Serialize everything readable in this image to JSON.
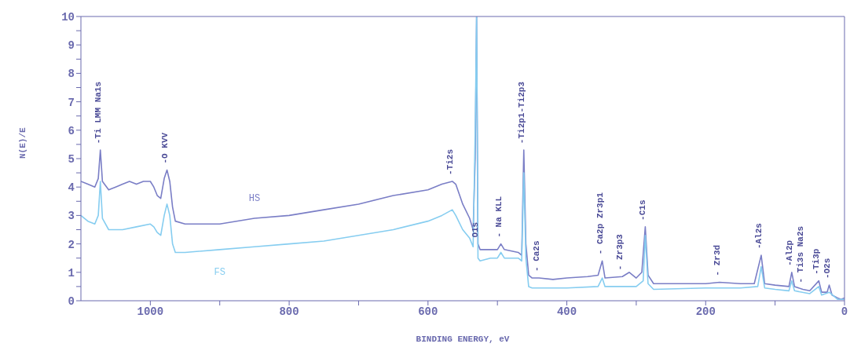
{
  "chart_data": {
    "type": "line",
    "xlabel": "BINDING ENERGY, eV",
    "ylabel": "N(E)/E",
    "xlim": [
      1100,
      0
    ],
    "xticks": [
      1000,
      {
        "value": 900,
        "label": null
      },
      800,
      {
        "value": 700,
        "label": null
      },
      600,
      {
        "value": 500,
        "label": null
      },
      400,
      {
        "value": 300,
        "label": null
      },
      200,
      {
        "value": 100,
        "label": null
      },
      0
    ],
    "ylim": [
      0,
      10
    ],
    "yticks": [
      0,
      {
        "value": 0.5,
        "label": null
      },
      1,
      {
        "value": 1.5,
        "label": null
      },
      2,
      {
        "value": 2.5,
        "label": null
      },
      3,
      {
        "value": 3.5,
        "label": null
      },
      4,
      {
        "value": 4.5,
        "label": null
      },
      5,
      {
        "value": 5.5,
        "label": null
      },
      6,
      {
        "value": 6.5,
        "label": null
      },
      7,
      {
        "value": 7.5,
        "label": null
      },
      8,
      {
        "value": 8.5,
        "label": null
      },
      9,
      {
        "value": 9.5,
        "label": null
      },
      10
    ],
    "grid": false,
    "legend": false,
    "marker": "none",
    "line_style": "solid",
    "series": [
      {
        "name": "HS",
        "color": "#7a7ec6",
        "x": [
          1100,
          1090,
          1080,
          1075,
          1072,
          1069,
          1060,
          1050,
          1040,
          1030,
          1020,
          1010,
          1000,
          995,
          990,
          985,
          980,
          976,
          972,
          968,
          964,
          950,
          900,
          850,
          800,
          750,
          700,
          650,
          600,
          580,
          565,
          560,
          550,
          540,
          535,
          532,
          530,
          528,
          525,
          510,
          500,
          495,
          490,
          470,
          465,
          462,
          459,
          455,
          450,
          440,
          420,
          400,
          370,
          355,
          349,
          345,
          320,
          310,
          300,
          292,
          287,
          283,
          275,
          250,
          200,
          180,
          150,
          130,
          120,
          115,
          100,
          80,
          76,
          72,
          60,
          50,
          37,
          33,
          25,
          22,
          18,
          10,
          5,
          0
        ],
        "values": [
          4.2,
          4.1,
          4.0,
          4.3,
          5.3,
          4.2,
          3.9,
          4.0,
          4.1,
          4.2,
          4.1,
          4.2,
          4.2,
          4.0,
          3.7,
          3.6,
          4.3,
          4.6,
          4.2,
          3.3,
          2.8,
          2.7,
          2.7,
          2.9,
          3.0,
          3.2,
          3.4,
          3.7,
          3.9,
          4.1,
          4.2,
          4.1,
          3.4,
          2.9,
          2.5,
          5,
          10,
          2,
          1.8,
          1.8,
          1.8,
          2.0,
          1.8,
          1.7,
          1.6,
          5.3,
          2,
          0.9,
          0.8,
          0.8,
          0.75,
          0.8,
          0.85,
          0.9,
          1.4,
          0.8,
          0.85,
          1.0,
          0.8,
          1.0,
          2.6,
          0.9,
          0.6,
          0.6,
          0.6,
          0.65,
          0.6,
          0.6,
          1.6,
          0.6,
          0.55,
          0.5,
          1.0,
          0.5,
          0.4,
          0.35,
          0.7,
          0.3,
          0.3,
          0.55,
          0.2,
          0.1,
          0.05,
          0.1
        ]
      },
      {
        "name": "FS",
        "color": "#86cdf0",
        "x": [
          1100,
          1090,
          1080,
          1075,
          1072,
          1069,
          1060,
          1040,
          1020,
          1000,
          995,
          990,
          985,
          980,
          976,
          972,
          968,
          964,
          950,
          900,
          850,
          800,
          750,
          700,
          650,
          600,
          580,
          565,
          560,
          550,
          540,
          535,
          532,
          530,
          528,
          525,
          510,
          500,
          495,
          490,
          470,
          465,
          462,
          459,
          455,
          450,
          400,
          355,
          349,
          345,
          300,
          290,
          287,
          283,
          275,
          200,
          150,
          125,
          120,
          115,
          100,
          80,
          76,
          72,
          50,
          37,
          33,
          22,
          10,
          0
        ],
        "values": [
          3.0,
          2.8,
          2.7,
          3.0,
          4.2,
          2.9,
          2.5,
          2.5,
          2.6,
          2.7,
          2.6,
          2.4,
          2.3,
          3.0,
          3.4,
          3.0,
          2.0,
          1.7,
          1.7,
          1.8,
          1.9,
          2.0,
          2.1,
          2.3,
          2.5,
          2.8,
          3.0,
          3.2,
          3.0,
          2.5,
          2.2,
          1.9,
          6,
          10,
          1.5,
          1.4,
          1.5,
          1.5,
          1.7,
          1.5,
          1.5,
          1.4,
          4.5,
          1.5,
          0.5,
          0.45,
          0.45,
          0.5,
          0.8,
          0.5,
          0.5,
          0.7,
          2.3,
          0.6,
          0.4,
          0.45,
          0.45,
          0.5,
          1.2,
          0.45,
          0.4,
          0.35,
          0.7,
          0.35,
          0.25,
          0.5,
          0.2,
          0.3,
          0.05,
          0.05
        ]
      }
    ],
    "annotations": [
      {
        "text": "-Ti LMM Na1s",
        "x": 1072,
        "y": 5.3
      },
      {
        "text": "-O KVV",
        "x": 976,
        "y": 4.6
      },
      {
        "text": "-Ti2s",
        "x": 565,
        "y": 4.2
      },
      {
        "text": "O1s",
        "x": 528,
        "y": 2
      },
      {
        "text": "- Na KLL",
        "x": 495,
        "y": 2.0
      },
      {
        "text": "-Ti2p1-Ti2p3",
        "x": 462,
        "y": 5.3
      },
      {
        "text": "- Ca2s",
        "x": 440,
        "y": 0.8
      },
      {
        "text": "- Ca2p Zr3p1",
        "x": 349,
        "y": 1.4
      },
      {
        "text": "- Zr3p3",
        "x": 320,
        "y": 0.85
      },
      {
        "text": "-C1s",
        "x": 287,
        "y": 2.6
      },
      {
        "text": "- Zr3d",
        "x": 180,
        "y": 0.65
      },
      {
        "text": "-Al2s",
        "x": 120,
        "y": 1.6
      },
      {
        "text": "-Al2p",
        "x": 76,
        "y": 1.0
      },
      {
        "text": "- Ti3s Na2s",
        "x": 60,
        "y": 0.4
      },
      {
        "text": "-Ti3p",
        "x": 37,
        "y": 0.7
      },
      {
        "text": "-O2s",
        "x": 22,
        "y": 0.55
      }
    ]
  }
}
